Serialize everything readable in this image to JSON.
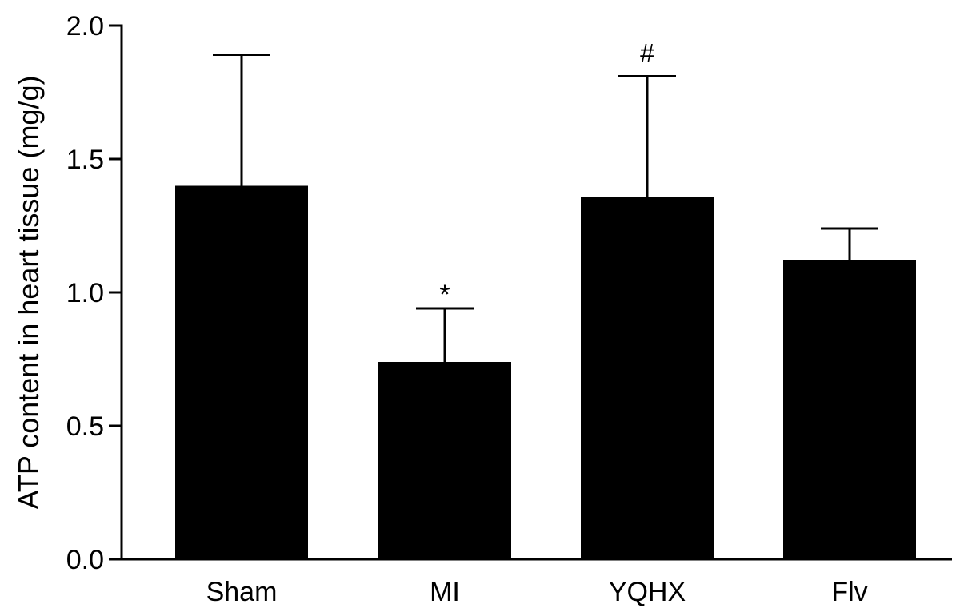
{
  "chart_data": {
    "type": "bar",
    "ylabel": "ATP content in heart tissue (mg/g)",
    "xlabel": "",
    "ylim": [
      0,
      2.0
    ],
    "yticks": [
      "0.0",
      "0.5",
      "1.0",
      "1.5",
      "2.0"
    ],
    "categories": [
      "Sham",
      "MI",
      "YQHX",
      "Flv"
    ],
    "values": [
      1.4,
      0.74,
      1.36,
      1.12
    ],
    "errors": [
      0.49,
      0.2,
      0.45,
      0.12
    ],
    "annotations": [
      "",
      "*",
      "#",
      ""
    ],
    "grid": false,
    "bar_color": "#000000"
  }
}
